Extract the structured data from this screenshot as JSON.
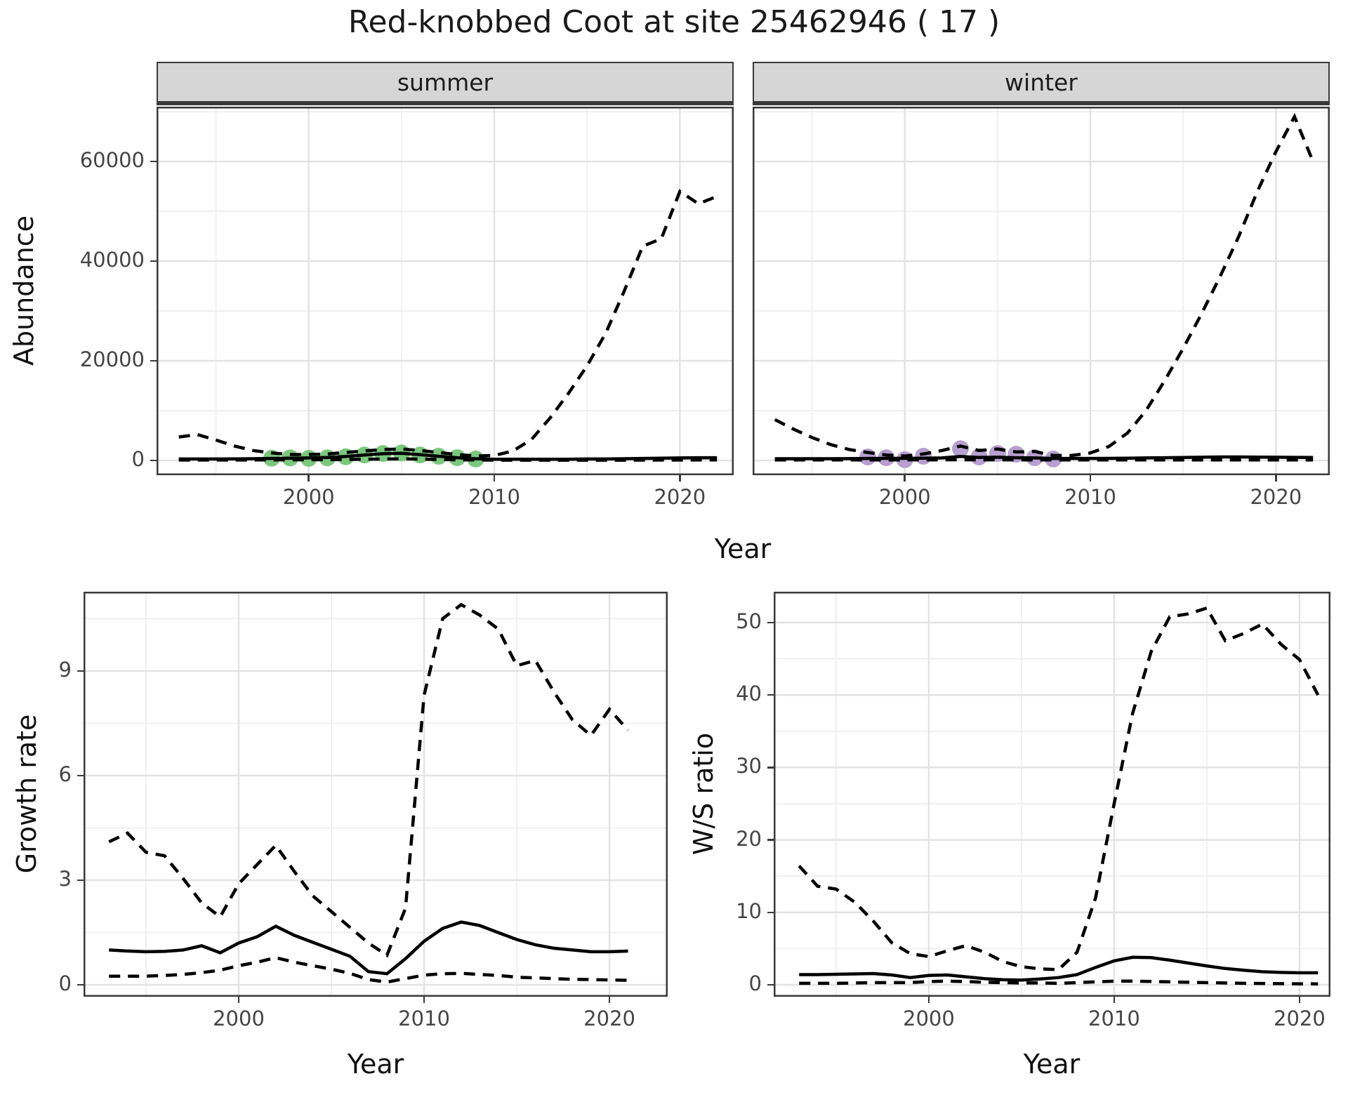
{
  "title": "Red-knobbed Coot at site 25462946 ( 17 )",
  "labels": {
    "abundance": "Abundance",
    "growth": "Growth rate",
    "ws": "W/S ratio",
    "year": "Year"
  },
  "colors": {
    "line": "#000000",
    "summer_points": "#7bc77e",
    "winter_points": "#b79fd0",
    "grid_major": "#e3e3e3",
    "grid_minor": "#f0f0f0",
    "panel_border": "#3a3a3a",
    "tick": "#3a3a3a",
    "tick_label": "#454545",
    "strip_bg": "#d6d6d6",
    "title_text": "#1a1a1a"
  },
  "chart_data": [
    {
      "id": "abundance-summer",
      "type": "line",
      "title": "summer",
      "xlabel": "Year",
      "ylabel": "Abundance",
      "xlim": [
        1991.8,
        2022.9
      ],
      "ylim": [
        -2960,
        71000
      ],
      "xticks": [
        2000,
        2010,
        2020
      ],
      "yticks": [
        0,
        20000,
        40000,
        60000
      ],
      "xminor": [
        1995,
        2005,
        2015
      ],
      "yminor": [
        10000,
        30000,
        50000,
        70000
      ],
      "grid": true,
      "legend": "none",
      "series": [
        {
          "name": "upper-95ci",
          "style": "dashed",
          "x": [
            1993,
            1994,
            1995,
            1996,
            1997,
            1998,
            1999,
            2000,
            2001,
            2002,
            2003,
            2004,
            2005,
            2006,
            2007,
            2008,
            2009,
            2010,
            2011,
            2012,
            2013,
            2014,
            2015,
            2016,
            2017,
            2018,
            2019,
            2020,
            2021,
            2022
          ],
          "values": [
            4700,
            5200,
            4100,
            2900,
            2000,
            1500,
            1200,
            1200,
            1300,
            1600,
            1900,
            2200,
            2300,
            2000,
            1600,
            1200,
            900,
            1000,
            1900,
            4200,
            8500,
            13500,
            19000,
            25500,
            34000,
            43000,
            44500,
            54000,
            51500,
            53000
          ]
        },
        {
          "name": "estimate",
          "style": "solid",
          "x": [
            1993,
            1994,
            1995,
            1996,
            1997,
            1998,
            1999,
            2000,
            2001,
            2002,
            2003,
            2004,
            2005,
            2006,
            2007,
            2008,
            2009,
            2010,
            2011,
            2012,
            2013,
            2014,
            2015,
            2016,
            2017,
            2018,
            2019,
            2020,
            2021,
            2022
          ],
          "values": [
            300,
            300,
            300,
            320,
            350,
            400,
            450,
            500,
            600,
            800,
            1100,
            1350,
            1450,
            1150,
            850,
            550,
            350,
            250,
            250,
            250,
            250,
            250,
            300,
            300,
            350,
            400,
            450,
            500,
            550,
            550
          ]
        },
        {
          "name": "lower-95ci",
          "style": "dashed",
          "x": [
            1993,
            1994,
            1995,
            1996,
            1997,
            1998,
            1999,
            2000,
            2001,
            2002,
            2003,
            2004,
            2005,
            2006,
            2007,
            2008,
            2009,
            2010,
            2011,
            2012,
            2013,
            2014,
            2015,
            2016,
            2017,
            2018,
            2019,
            2020,
            2021,
            2022
          ],
          "values": [
            80,
            80,
            80,
            80,
            90,
            100,
            120,
            140,
            160,
            200,
            250,
            300,
            320,
            260,
            200,
            140,
            100,
            70,
            60,
            50,
            50,
            50,
            50,
            60,
            60,
            70,
            80,
            80,
            90,
            90
          ]
        },
        {
          "name": "observed-counts",
          "style": "points",
          "color": "#7bc77e",
          "x": [
            1998,
            1999,
            2000,
            2001,
            2002,
            2003,
            2004,
            2005,
            2006,
            2007,
            2008,
            2009
          ],
          "values": [
            450,
            500,
            420,
            520,
            750,
            1100,
            1400,
            1500,
            1100,
            850,
            550,
            300
          ]
        }
      ]
    },
    {
      "id": "abundance-winter",
      "type": "line",
      "title": "winter",
      "xlabel": "Year",
      "ylabel": "Abundance",
      "xlim": [
        1991.8,
        2022.9
      ],
      "ylim": [
        -2960,
        71000
      ],
      "xticks": [
        2000,
        2010,
        2020
      ],
      "yticks": [
        0,
        20000,
        40000,
        60000
      ],
      "xminor": [
        1995,
        2005,
        2015
      ],
      "yminor": [
        10000,
        30000,
        50000,
        70000
      ],
      "grid": true,
      "legend": "none",
      "series": [
        {
          "name": "upper-95ci",
          "style": "dashed",
          "x": [
            1993,
            1994,
            1995,
            1996,
            1997,
            1998,
            1999,
            2000,
            2001,
            2002,
            2003,
            2004,
            2005,
            2006,
            2007,
            2008,
            2009,
            2010,
            2011,
            2012,
            2013,
            2014,
            2015,
            2016,
            2017,
            2018,
            2019,
            2020,
            2021,
            2022
          ],
          "values": [
            8200,
            6300,
            4600,
            3200,
            2200,
            1600,
            1100,
            900,
            1300,
            2000,
            2900,
            2000,
            2300,
            1700,
            1800,
            1000,
            1000,
            1500,
            2800,
            5500,
            10000,
            16000,
            22500,
            29500,
            37000,
            45000,
            54000,
            62000,
            69000,
            60000
          ]
        },
        {
          "name": "estimate",
          "style": "solid",
          "x": [
            1993,
            1994,
            1995,
            1996,
            1997,
            1998,
            1999,
            2000,
            2001,
            2002,
            2003,
            2004,
            2005,
            2006,
            2007,
            2008,
            2009,
            2010,
            2011,
            2012,
            2013,
            2014,
            2015,
            2016,
            2017,
            2018,
            2019,
            2020,
            2021,
            2022
          ],
          "values": [
            350,
            350,
            350,
            350,
            360,
            400,
            420,
            420,
            450,
            500,
            800,
            600,
            650,
            550,
            500,
            400,
            400,
            400,
            420,
            450,
            500,
            550,
            600,
            650,
            700,
            700,
            680,
            650,
            620,
            600
          ]
        },
        {
          "name": "lower-95ci",
          "style": "dashed",
          "x": [
            1993,
            1994,
            1995,
            1996,
            1997,
            1998,
            1999,
            2000,
            2001,
            2002,
            2003,
            2004,
            2005,
            2006,
            2007,
            2008,
            2009,
            2010,
            2011,
            2012,
            2013,
            2014,
            2015,
            2016,
            2017,
            2018,
            2019,
            2020,
            2021,
            2022
          ],
          "values": [
            100,
            100,
            100,
            100,
            100,
            110,
            110,
            110,
            120,
            130,
            150,
            130,
            130,
            120,
            110,
            100,
            100,
            100,
            100,
            100,
            100,
            100,
            110,
            110,
            110,
            110,
            100,
            100,
            100,
            100
          ]
        },
        {
          "name": "observed-counts",
          "style": "points",
          "color": "#b79fd0",
          "x": [
            1998,
            1999,
            2000,
            2001,
            2003,
            2004,
            2005,
            2006,
            2007,
            2008
          ],
          "values": [
            700,
            550,
            150,
            850,
            2350,
            700,
            1400,
            1250,
            550,
            300
          ]
        }
      ]
    },
    {
      "id": "growth",
      "type": "line",
      "title": "",
      "xlabel": "Year",
      "ylabel": "Growth rate",
      "xlim": [
        1991.63,
        2023.14
      ],
      "ylim": [
        -0.34,
        11.27
      ],
      "xticks": [
        2000,
        2010,
        2020
      ],
      "yticks": [
        0,
        3,
        6,
        9
      ],
      "xminor": [
        1995,
        2005,
        2015
      ],
      "yminor": [
        1.5,
        4.5,
        7.5,
        10.5
      ],
      "grid": true,
      "legend": "none",
      "series": [
        {
          "name": "upper-95ci",
          "style": "dashed",
          "x": [
            1993,
            1994,
            1995,
            1996,
            1997,
            1998,
            1999,
            2000,
            2001,
            2002,
            2003,
            2004,
            2005,
            2006,
            2007,
            2008,
            2009,
            2010,
            2011,
            2012,
            2013,
            2014,
            2015,
            2016,
            2017,
            2018,
            2019,
            2020,
            2021
          ],
          "values": [
            4.1,
            4.35,
            3.8,
            3.7,
            3.05,
            2.35,
            1.95,
            2.9,
            3.45,
            4.0,
            3.25,
            2.55,
            2.1,
            1.65,
            1.2,
            0.85,
            2.2,
            8.3,
            10.5,
            10.9,
            10.6,
            10.2,
            9.15,
            9.3,
            8.4,
            7.6,
            7.15,
            7.9,
            7.3
          ]
        },
        {
          "name": "estimate",
          "style": "solid",
          "x": [
            1993,
            1994,
            1995,
            1996,
            1997,
            1998,
            1999,
            2000,
            2001,
            2002,
            2003,
            2004,
            2005,
            2006,
            2007,
            2008,
            2009,
            2010,
            2011,
            2012,
            2013,
            2014,
            2015,
            2016,
            2017,
            2018,
            2019,
            2020,
            2021
          ],
          "values": [
            1.0,
            0.97,
            0.95,
            0.96,
            1.0,
            1.12,
            0.92,
            1.2,
            1.38,
            1.68,
            1.42,
            1.22,
            1.02,
            0.82,
            0.38,
            0.32,
            0.75,
            1.25,
            1.62,
            1.8,
            1.7,
            1.5,
            1.3,
            1.15,
            1.05,
            1.0,
            0.95,
            0.95,
            0.97
          ]
        },
        {
          "name": "lower-95ci",
          "style": "dashed",
          "x": [
            1993,
            1994,
            1995,
            1996,
            1997,
            1998,
            1999,
            2000,
            2001,
            2002,
            2003,
            2004,
            2005,
            2006,
            2007,
            2008,
            2009,
            2010,
            2011,
            2012,
            2013,
            2014,
            2015,
            2016,
            2017,
            2018,
            2019,
            2020,
            2021
          ],
          "values": [
            0.25,
            0.25,
            0.25,
            0.27,
            0.3,
            0.35,
            0.42,
            0.55,
            0.65,
            0.78,
            0.65,
            0.55,
            0.45,
            0.33,
            0.15,
            0.08,
            0.18,
            0.28,
            0.32,
            0.33,
            0.3,
            0.27,
            0.22,
            0.2,
            0.18,
            0.16,
            0.15,
            0.14,
            0.13
          ]
        }
      ]
    },
    {
      "id": "ws",
      "type": "line",
      "title": "",
      "xlabel": "Year",
      "ylabel": "W/S ratio",
      "xlim": [
        1991.63,
        2021.67
      ],
      "ylim": [
        -1.65,
        54.26
      ],
      "xticks": [
        2000,
        2010,
        2020
      ],
      "yticks": [
        0,
        10,
        20,
        30,
        40,
        50
      ],
      "xminor": [
        1995,
        2005,
        2015
      ],
      "yminor": [
        5,
        15,
        25,
        35,
        45
      ],
      "grid": true,
      "legend": "none",
      "series": [
        {
          "name": "upper-95ci",
          "style": "dashed",
          "x": [
            1993,
            1994,
            1995,
            1996,
            1997,
            1998,
            1999,
            2000,
            2001,
            2002,
            2003,
            2004,
            2005,
            2006,
            2007,
            2008,
            2009,
            2010,
            2011,
            2012,
            2013,
            2014,
            2015,
            2016,
            2017,
            2018,
            2019,
            2020,
            2021
          ],
          "values": [
            16.4,
            13.6,
            13.2,
            11.4,
            8.8,
            5.8,
            4.3,
            3.9,
            4.7,
            5.4,
            4.5,
            3.2,
            2.5,
            2.2,
            2.1,
            4.5,
            12,
            25,
            37.5,
            46,
            50.8,
            51.2,
            52.0,
            47.5,
            48.5,
            49.8,
            47.0,
            44.9,
            40.0
          ]
        },
        {
          "name": "estimate",
          "style": "solid",
          "x": [
            1993,
            1994,
            1995,
            1996,
            1997,
            1998,
            1999,
            2000,
            2001,
            2002,
            2003,
            2004,
            2005,
            2006,
            2007,
            2008,
            2009,
            2010,
            2011,
            2012,
            2013,
            2014,
            2015,
            2016,
            2017,
            2018,
            2019,
            2020,
            2021
          ],
          "values": [
            1.4,
            1.4,
            1.45,
            1.5,
            1.55,
            1.35,
            1.0,
            1.3,
            1.35,
            1.1,
            0.85,
            0.7,
            0.65,
            0.8,
            1.0,
            1.4,
            2.4,
            3.3,
            3.8,
            3.75,
            3.4,
            3.0,
            2.6,
            2.25,
            2.0,
            1.8,
            1.7,
            1.65,
            1.65
          ]
        },
        {
          "name": "lower-95ci",
          "style": "dashed",
          "x": [
            1993,
            1994,
            1995,
            1996,
            1997,
            1998,
            1999,
            2000,
            2001,
            2002,
            2003,
            2004,
            2005,
            2006,
            2007,
            2008,
            2009,
            2010,
            2011,
            2012,
            2013,
            2014,
            2015,
            2016,
            2017,
            2018,
            2019,
            2020,
            2021
          ],
          "values": [
            0.2,
            0.2,
            0.2,
            0.25,
            0.3,
            0.3,
            0.3,
            0.45,
            0.5,
            0.45,
            0.35,
            0.3,
            0.25,
            0.25,
            0.2,
            0.3,
            0.4,
            0.5,
            0.5,
            0.45,
            0.4,
            0.35,
            0.3,
            0.25,
            0.2,
            0.18,
            0.15,
            0.13,
            0.12
          ]
        }
      ]
    }
  ]
}
